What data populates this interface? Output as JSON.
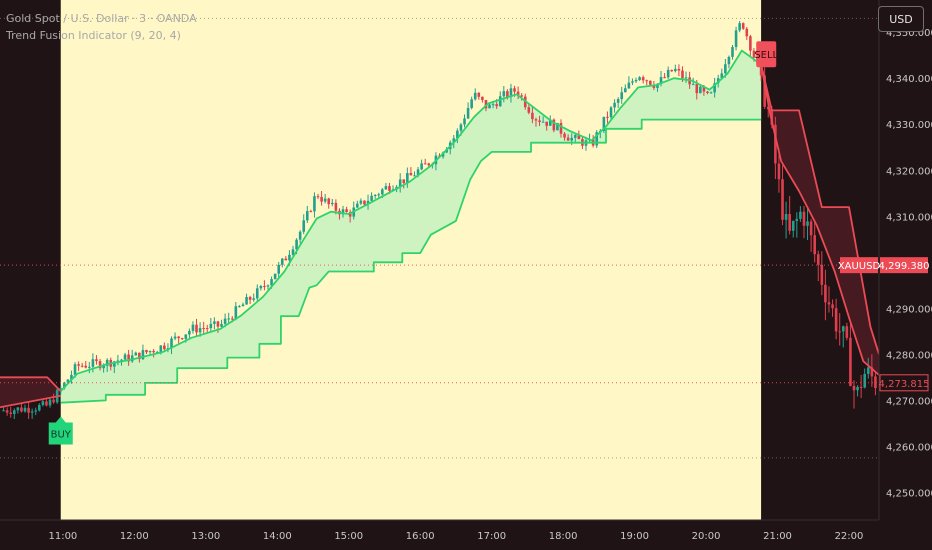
{
  "header": {
    "title": "Gold Spot / U.S. Dollar · 3 · OANDA",
    "indicator": "Trend Fusion Indicator (9, 20, 4)",
    "currency_button": "USD"
  },
  "colors": {
    "background": "#201316",
    "bull_zone": "#fff7c5",
    "candle_up": "#22a08e",
    "candle_down": "#e0404e",
    "trend_up": "#2ed36b",
    "trend_down": "#ec4b55",
    "fill_up": "#c9f2c0",
    "fill_down": "#4a1c22",
    "buy_tag": "#22d47a",
    "sell_tag": "#f0505a"
  },
  "chart_data": {
    "type": "candlestick",
    "symbol": "XAUUSD",
    "y_axis": {
      "ticks": [
        4250,
        4260,
        4270,
        4280,
        4290,
        4300,
        4310,
        4320,
        4330,
        4340,
        4350
      ],
      "tick_labels": [
        "4,250.000",
        "4,260.000",
        "4,270.000",
        "4,280.000",
        "4,290.000",
        "",
        "4,310.000",
        "4,320.000",
        "4,330.000",
        "4,340.000",
        "4,350.000"
      ],
      "range": [
        4244,
        4357
      ]
    },
    "x_axis": {
      "ticks": [
        11,
        12,
        13,
        14,
        15,
        16,
        17,
        18,
        19,
        20,
        21,
        22
      ],
      "tick_labels": [
        "11:00",
        "12:00",
        "13:00",
        "14:00",
        "15:00",
        "16:00",
        "17:00",
        "18:00",
        "19:00",
        "20:00",
        "21:00",
        "22:00"
      ],
      "range": [
        10.12,
        22.42
      ]
    },
    "price_path": [
      [
        10.12,
        4267.8
      ],
      [
        10.45,
        4268.2
      ],
      [
        10.78,
        4268.8
      ],
      [
        10.97,
        4272.4
      ],
      [
        11.2,
        4277.5
      ],
      [
        11.6,
        4278.2
      ],
      [
        12.0,
        4279.5
      ],
      [
        12.4,
        4281.8
      ],
      [
        12.8,
        4285.5
      ],
      [
        13.2,
        4286.2
      ],
      [
        13.5,
        4290.5
      ],
      [
        13.8,
        4294.5
      ],
      [
        14.1,
        4300.5
      ],
      [
        14.35,
        4307.5
      ],
      [
        14.55,
        4315.0
      ],
      [
        14.75,
        4312.0
      ],
      [
        15.0,
        4310.5
      ],
      [
        15.25,
        4313.5
      ],
      [
        15.55,
        4316.5
      ],
      [
        15.85,
        4318.5
      ],
      [
        16.15,
        4322.0
      ],
      [
        16.5,
        4327.5
      ],
      [
        16.75,
        4336.5
      ],
      [
        16.95,
        4333.5
      ],
      [
        17.15,
        4336.0
      ],
      [
        17.35,
        4337.5
      ],
      [
        17.6,
        4331.5
      ],
      [
        17.85,
        4330.0
      ],
      [
        18.1,
        4327.0
      ],
      [
        18.4,
        4325.5
      ],
      [
        18.6,
        4331.5
      ],
      [
        18.8,
        4336.0
      ],
      [
        19.05,
        4341.0
      ],
      [
        19.3,
        4338.5
      ],
      [
        19.55,
        4342.0
      ],
      [
        19.8,
        4338.5
      ],
      [
        20.05,
        4335.5
      ],
      [
        20.3,
        4345.0
      ],
      [
        20.5,
        4352.5
      ],
      [
        20.7,
        4343.5
      ],
      [
        20.85,
        4335.0
      ],
      [
        21.0,
        4318.0
      ],
      [
        21.15,
        4305.0
      ],
      [
        21.35,
        4311.5
      ],
      [
        21.55,
        4300.0
      ],
      [
        21.75,
        4290.0
      ],
      [
        21.95,
        4282.0
      ],
      [
        22.1,
        4270.0
      ],
      [
        22.2,
        4276.0
      ],
      [
        22.42,
        4274.0
      ]
    ],
    "trend_line_up": [
      [
        10.97,
        4272.0
      ],
      [
        11.2,
        4275.8
      ],
      [
        11.6,
        4277.8
      ],
      [
        12.0,
        4279.0
      ],
      [
        12.4,
        4280.5
      ],
      [
        12.8,
        4283.6
      ],
      [
        13.2,
        4285.5
      ],
      [
        13.5,
        4288.5
      ],
      [
        13.8,
        4292.5
      ],
      [
        14.1,
        4298.0
      ],
      [
        14.35,
        4304.5
      ],
      [
        14.55,
        4309.5
      ],
      [
        14.75,
        4311.0
      ],
      [
        15.0,
        4310.5
      ],
      [
        15.25,
        4312.5
      ],
      [
        15.55,
        4315.0
      ],
      [
        15.85,
        4317.5
      ],
      [
        16.15,
        4321.0
      ],
      [
        16.5,
        4326.5
      ],
      [
        16.75,
        4331.5
      ],
      [
        16.95,
        4334.5
      ],
      [
        17.15,
        4335.5
      ],
      [
        17.35,
        4336.5
      ],
      [
        17.6,
        4333.5
      ],
      [
        17.85,
        4330.5
      ],
      [
        18.1,
        4328.5
      ],
      [
        18.4,
        4326.5
      ],
      [
        18.6,
        4329.5
      ],
      [
        18.8,
        4333.5
      ],
      [
        19.05,
        4338.0
      ],
      [
        19.3,
        4338.5
      ],
      [
        19.55,
        4340.0
      ],
      [
        19.8,
        4339.5
      ],
      [
        20.05,
        4337.5
      ],
      [
        20.3,
        4341.0
      ],
      [
        20.5,
        4346.0
      ],
      [
        20.77,
        4343.0
      ]
    ],
    "stop_line_up": [
      [
        10.97,
        4269.5
      ],
      [
        11.6,
        4270.0
      ],
      [
        11.6,
        4271.2
      ],
      [
        12.15,
        4271.2
      ],
      [
        12.15,
        4273.8
      ],
      [
        12.6,
        4273.8
      ],
      [
        12.6,
        4277.0
      ],
      [
        13.3,
        4277.0
      ],
      [
        13.3,
        4279.3
      ],
      [
        13.75,
        4279.3
      ],
      [
        13.75,
        4282.3
      ],
      [
        14.05,
        4282.3
      ],
      [
        14.05,
        4288.3
      ],
      [
        14.3,
        4288.3
      ],
      [
        14.45,
        4294.5
      ],
      [
        14.55,
        4295.0
      ],
      [
        14.72,
        4298.0
      ],
      [
        15.35,
        4298.0
      ],
      [
        15.35,
        4300.0
      ],
      [
        15.75,
        4300.0
      ],
      [
        15.75,
        4302.0
      ],
      [
        16.0,
        4302.0
      ],
      [
        16.15,
        4306.0
      ],
      [
        16.5,
        4309.0
      ],
      [
        16.7,
        4318.0
      ],
      [
        16.85,
        4322.0
      ],
      [
        17.0,
        4324.0
      ],
      [
        17.55,
        4324.0
      ],
      [
        17.55,
        4326.0
      ],
      [
        18.6,
        4326.0
      ],
      [
        18.6,
        4329.0
      ],
      [
        19.1,
        4329.0
      ],
      [
        19.1,
        4331.0
      ],
      [
        20.77,
        4331.0
      ]
    ],
    "trend_line_down_left": [
      [
        10.12,
        4268.5
      ],
      [
        10.97,
        4271.0
      ]
    ],
    "stop_line_down_left": [
      [
        10.12,
        4275.0
      ],
      [
        10.78,
        4275.0
      ],
      [
        10.97,
        4272.0
      ]
    ],
    "trend_line_down_right": [
      [
        20.77,
        4343.0
      ],
      [
        20.9,
        4332.0
      ],
      [
        21.05,
        4322.0
      ],
      [
        21.3,
        4315.5
      ],
      [
        21.55,
        4308.0
      ],
      [
        21.8,
        4298.0
      ],
      [
        22.0,
        4288.0
      ],
      [
        22.2,
        4278.5
      ],
      [
        22.42,
        4275.5
      ]
    ],
    "stop_line_down_right": [
      [
        20.77,
        4343.0
      ],
      [
        20.92,
        4333.0
      ],
      [
        21.3,
        4333.0
      ],
      [
        21.62,
        4312.0
      ],
      [
        22.0,
        4312.0
      ],
      [
        22.3,
        4286.0
      ],
      [
        22.42,
        4280.0
      ]
    ],
    "bull_zone": [
      10.97,
      20.77
    ],
    "price_lines": [
      {
        "label": "XAUUSD",
        "value": 4299.38,
        "value_label": "4,299.380"
      },
      {
        "value": 4273.815,
        "value_label": "4,273.815"
      }
    ],
    "dotted_levels": [
      4353.0,
      4257.5
    ],
    "signals": [
      {
        "label": "BUY",
        "x": 10.97,
        "y": 4266.5,
        "side": "below"
      },
      {
        "label": "SELL",
        "x": 20.8,
        "y": 4345.0,
        "side": "right"
      }
    ]
  }
}
